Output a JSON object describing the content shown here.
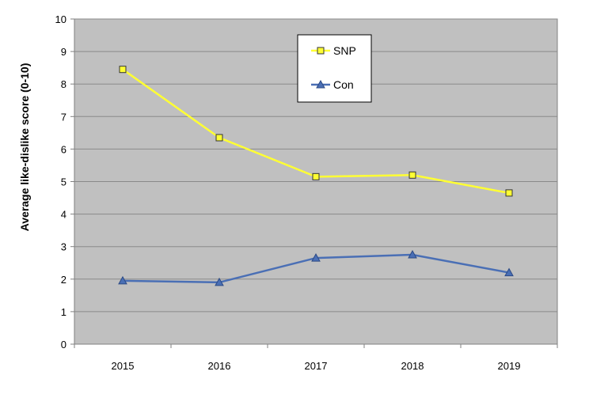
{
  "chart_data": {
    "type": "line",
    "title": "",
    "xlabel": "",
    "ylabel": "Average like-dislike score (0-10)",
    "x": [
      "2015",
      "2016",
      "2017",
      "2018",
      "2019"
    ],
    "ylim": [
      0,
      10
    ],
    "yticks": [
      "0",
      "1",
      "2",
      "3",
      "4",
      "5",
      "6",
      "7",
      "8",
      "9",
      "10"
    ],
    "grid": "horizontal",
    "legend_position": "top-center",
    "plot_background": "#c0c0c0",
    "series": [
      {
        "name": "SNP",
        "values": [
          8.45,
          6.35,
          5.15,
          5.2,
          4.65
        ],
        "color": "#ffff33",
        "marker": "square"
      },
      {
        "name": "Con",
        "values": [
          1.95,
          1.9,
          2.65,
          2.75,
          2.2
        ],
        "color": "#4a6fb5",
        "marker": "triangle"
      }
    ]
  }
}
